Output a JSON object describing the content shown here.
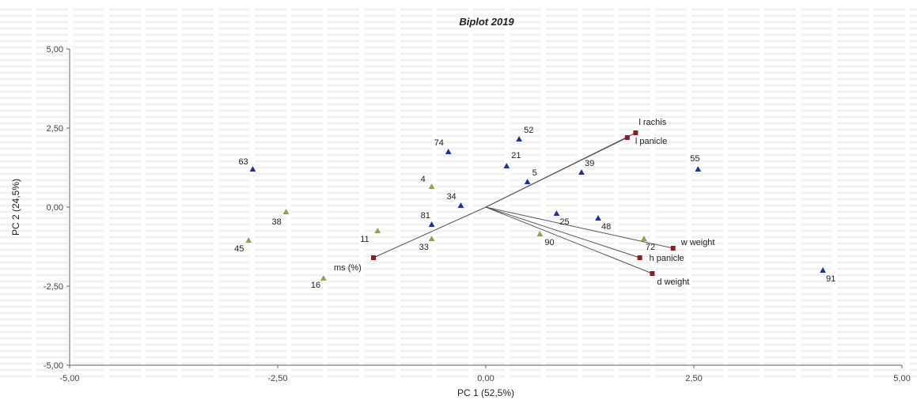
{
  "chart_data": {
    "type": "scatter",
    "title": "Biplot 2019",
    "xlabel": "PC 1 (52,5%)",
    "ylabel": "PC 2 (24,5%)",
    "xlim": [
      -5,
      5
    ],
    "ylim": [
      -5,
      5
    ],
    "x_ticks": [
      -5,
      -2.5,
      0,
      2.5,
      5
    ],
    "y_ticks": [
      -5,
      -2.5,
      0,
      2.5,
      5
    ],
    "x_tick_labels": [
      "-5,00",
      "-2,50",
      "0,00",
      "2,50",
      "5,00"
    ],
    "y_tick_labels": [
      "-5,00",
      "-2,50",
      "0,00",
      "2,50",
      "5,00"
    ],
    "grid": false,
    "colors": {
      "group_blue": "#1f2f9a",
      "group_olive": "#9a9a55",
      "variable": "#8e1d2b",
      "vector": "#555555"
    },
    "series": [
      {
        "marker": "triangle",
        "color_key": "group_blue",
        "points": [
          {
            "label": "63",
            "x": -2.8,
            "y": 1.2
          },
          {
            "label": "74",
            "x": -0.45,
            "y": 1.75
          },
          {
            "label": "52",
            "x": 0.4,
            "y": 2.15
          },
          {
            "label": "21",
            "x": 0.25,
            "y": 1.3
          },
          {
            "label": "5",
            "x": 0.5,
            "y": 0.8
          },
          {
            "label": "34",
            "x": -0.3,
            "y": 0.05
          },
          {
            "label": "81",
            "x": -0.65,
            "y": -0.55
          },
          {
            "label": "39",
            "x": 1.15,
            "y": 1.1
          },
          {
            "label": "55",
            "x": 2.55,
            "y": 1.2
          },
          {
            "label": "25",
            "x": 0.85,
            "y": -0.2
          },
          {
            "label": "48",
            "x": 1.35,
            "y": -0.35
          },
          {
            "label": "91",
            "x": 4.05,
            "y": -2.0
          }
        ]
      },
      {
        "marker": "triangle",
        "color_key": "group_olive",
        "points": [
          {
            "label": "4",
            "x": -0.65,
            "y": 0.65
          },
          {
            "label": "38",
            "x": -2.4,
            "y": -0.15
          },
          {
            "label": "45",
            "x": -2.85,
            "y": -1.05
          },
          {
            "label": "11",
            "x": -1.3,
            "y": -0.75
          },
          {
            "label": "33",
            "x": -0.65,
            "y": -1.0
          },
          {
            "label": "16",
            "x": -1.95,
            "y": -2.25
          },
          {
            "label": "90",
            "x": 0.65,
            "y": -0.85
          },
          {
            "label": "72",
            "x": 1.9,
            "y": -1.0
          }
        ]
      }
    ],
    "variables": [
      {
        "label": "l rachis",
        "x": 1.8,
        "y": 2.35
      },
      {
        "label": "l panicle",
        "x": 1.7,
        "y": 2.2
      },
      {
        "label": "w weight",
        "x": 2.25,
        "y": -1.3
      },
      {
        "label": "h panicle",
        "x": 1.85,
        "y": -1.6
      },
      {
        "label": "d weight",
        "x": 2.0,
        "y": -2.1
      },
      {
        "label": "ms (%)",
        "x": -1.35,
        "y": -1.6
      }
    ]
  }
}
